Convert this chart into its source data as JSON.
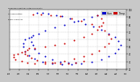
{
  "background_color": "#c8c8c8",
  "plot_bg_color": "#ffffff",
  "grid_color": "#aaaaaa",
  "dot_size": 2.0,
  "series": [
    {
      "label": "Hum",
      "color": "#0000cc",
      "points": [
        [
          55,
          93
        ],
        [
          52,
          90
        ],
        [
          48,
          87
        ],
        [
          43,
          84
        ],
        [
          38,
          80
        ],
        [
          33,
          76
        ],
        [
          28,
          72
        ],
        [
          25,
          68
        ],
        [
          22,
          65
        ],
        [
          20,
          62
        ],
        [
          18,
          60
        ],
        [
          17,
          55
        ],
        [
          17,
          50
        ],
        [
          18,
          44
        ],
        [
          20,
          38
        ],
        [
          23,
          34
        ],
        [
          27,
          30
        ],
        [
          32,
          28
        ],
        [
          37,
          27
        ],
        [
          42,
          27
        ],
        [
          47,
          28
        ],
        [
          52,
          30
        ],
        [
          57,
          33
        ],
        [
          61,
          37
        ],
        [
          64,
          42
        ],
        [
          66,
          47
        ],
        [
          67,
          52
        ],
        [
          66,
          58
        ],
        [
          64,
          63
        ],
        [
          61,
          68
        ],
        [
          57,
          73
        ],
        [
          53,
          77
        ],
        [
          49,
          81
        ],
        [
          45,
          85
        ],
        [
          41,
          88
        ],
        [
          37,
          91
        ],
        [
          34,
          93
        ],
        [
          30,
          95
        ],
        [
          27,
          96
        ],
        [
          24,
          96
        ],
        [
          21,
          63
        ],
        [
          21,
          57
        ],
        [
          22,
          52
        ],
        [
          23,
          47
        ],
        [
          25,
          42
        ],
        [
          28,
          37
        ],
        [
          32,
          33
        ],
        [
          36,
          30
        ],
        [
          40,
          29
        ],
        [
          44,
          29
        ]
      ]
    },
    {
      "label": "Temp",
      "color": "#cc0000",
      "points": [
        [
          55,
          92
        ],
        [
          57,
          88
        ],
        [
          58,
          83
        ],
        [
          57,
          78
        ],
        [
          55,
          73
        ],
        [
          52,
          68
        ],
        [
          48,
          63
        ],
        [
          43,
          59
        ],
        [
          38,
          55
        ],
        [
          33,
          52
        ],
        [
          28,
          50
        ],
        [
          23,
          48
        ],
        [
          19,
          46
        ],
        [
          16,
          43
        ],
        [
          14,
          41
        ],
        [
          12,
          39
        ],
        [
          12,
          36
        ],
        [
          13,
          33
        ],
        [
          16,
          31
        ],
        [
          19,
          29
        ],
        [
          23,
          28
        ],
        [
          28,
          28
        ],
        [
          33,
          29
        ],
        [
          38,
          31
        ],
        [
          43,
          34
        ],
        [
          48,
          37
        ],
        [
          52,
          41
        ],
        [
          56,
          45
        ],
        [
          59,
          50
        ],
        [
          61,
          55
        ],
        [
          62,
          61
        ],
        [
          61,
          67
        ],
        [
          59,
          72
        ],
        [
          56,
          77
        ],
        [
          52,
          81
        ],
        [
          47,
          85
        ],
        [
          42,
          88
        ],
        [
          36,
          91
        ],
        [
          31,
          93
        ],
        [
          26,
          94
        ],
        [
          22,
          94
        ],
        [
          20,
          48
        ],
        [
          18,
          44
        ],
        [
          18,
          41
        ],
        [
          19,
          38
        ],
        [
          21,
          35
        ],
        [
          24,
          32
        ],
        [
          28,
          30
        ],
        [
          32,
          29
        ],
        [
          36,
          28
        ],
        [
          40,
          28
        ],
        [
          44,
          29
        ],
        [
          48,
          31
        ]
      ]
    }
  ],
  "xlim": [
    10,
    70
  ],
  "ylim": [
    20,
    100
  ],
  "xtick_values": [
    10,
    15,
    20,
    25,
    30,
    35,
    40,
    45,
    50,
    55,
    60,
    65,
    70
  ],
  "ytick_values": [
    20,
    30,
    40,
    50,
    60,
    70,
    80,
    90,
    100
  ],
  "legend_items": [
    {
      "label": "Hum",
      "color": "#0000cc"
    },
    {
      "label": "Temp",
      "color": "#cc0000"
    }
  ]
}
